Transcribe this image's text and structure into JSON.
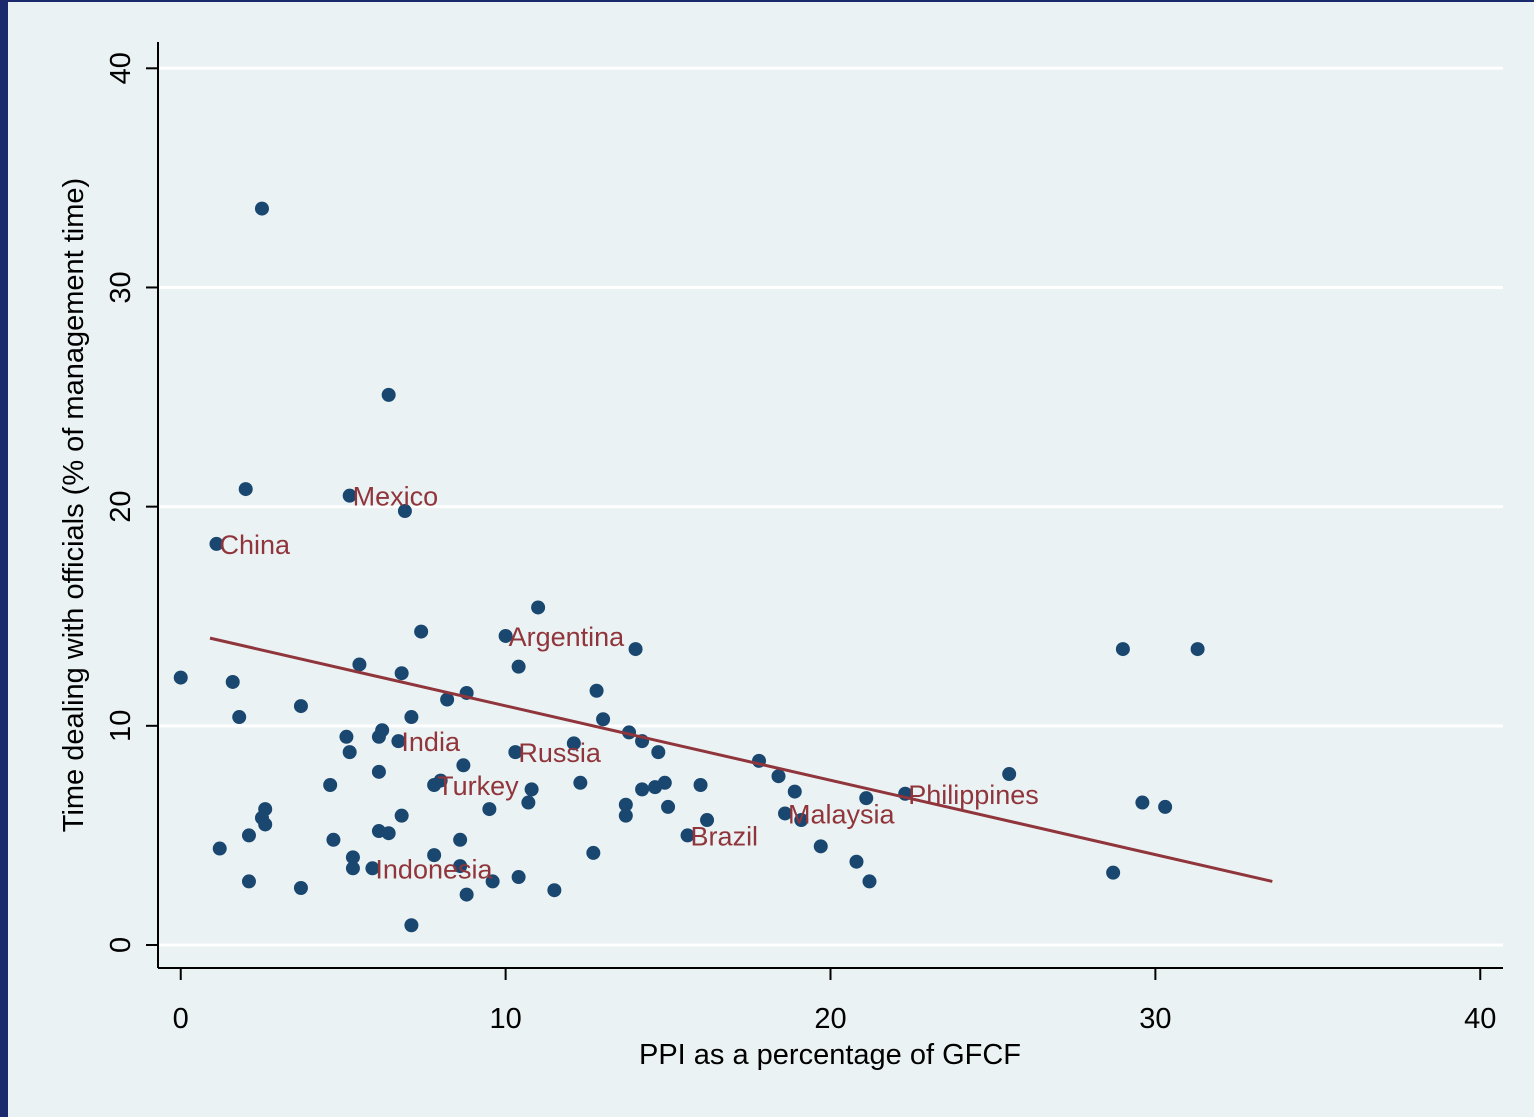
{
  "chart_data": {
    "type": "scatter",
    "xlabel": "PPI as a percentage of GFCF",
    "ylabel": "Time dealing with officials (% of management time)",
    "xlim": [
      -0.7,
      40.7
    ],
    "ylim": [
      -1.05,
      41.2
    ],
    "xticks": [
      0,
      10,
      20,
      30,
      40
    ],
    "yticks": [
      0,
      10,
      20,
      30,
      40
    ],
    "grid": true,
    "series": [
      {
        "type": "scatter",
        "color": "#1a476f",
        "x": [
          0,
          2.5,
          6.4,
          2.0,
          5.2,
          6.9,
          1.1,
          11.0,
          7.4,
          10.0,
          14.0,
          29.0,
          31.3,
          5.5,
          10.4,
          6.8,
          1.6,
          8.8,
          12.8,
          8.2,
          3.7,
          1.8,
          7.1,
          13.0,
          6.2,
          5.1,
          6.1,
          13.8,
          6.7,
          12.1,
          14.2,
          5.2,
          14.7,
          10.3,
          17.8,
          8.7,
          6.1,
          18.4,
          25.5,
          8.0,
          7.8,
          4.6,
          12.3,
          16.0,
          14.9,
          10.8,
          14.2,
          14.6,
          18.9,
          21.1,
          22.3,
          29.6,
          30.3,
          10.7,
          13.7,
          15.0,
          9.5,
          2.6,
          2.5,
          6.8,
          13.7,
          18.6,
          19.1,
          16.2,
          2.6,
          6.1,
          6.4,
          15.6,
          2.1,
          4.7,
          8.6,
          19.7,
          1.2,
          12.7,
          7.8,
          5.3,
          20.8,
          8.6,
          5.3,
          5.9,
          28.7,
          9.6,
          10.4,
          21.2,
          2.1,
          3.7,
          11.5,
          8.8,
          7.1
        ],
        "values": [
          12.2,
          33.6,
          25.1,
          20.8,
          20.5,
          19.8,
          18.3,
          15.4,
          14.3,
          14.1,
          13.5,
          13.5,
          13.5,
          12.8,
          12.7,
          12.4,
          12.0,
          11.5,
          11.6,
          11.2,
          10.9,
          10.4,
          10.4,
          10.3,
          9.8,
          9.5,
          9.5,
          9.7,
          9.3,
          9.2,
          9.3,
          8.8,
          8.8,
          8.8,
          8.4,
          8.2,
          7.9,
          7.7,
          7.8,
          7.5,
          7.3,
          7.3,
          7.4,
          7.3,
          7.4,
          7.1,
          7.1,
          7.2,
          7.0,
          6.7,
          6.9,
          6.5,
          6.3,
          6.5,
          6.4,
          6.3,
          6.2,
          6.2,
          5.8,
          5.9,
          5.9,
          6.0,
          5.7,
          5.7,
          5.5,
          5.2,
          5.1,
          5.0,
          5.0,
          4.8,
          4.8,
          4.5,
          4.4,
          4.2,
          4.1,
          4.0,
          3.8,
          3.6,
          3.5,
          3.5,
          3.3,
          2.9,
          3.1,
          2.9,
          2.9,
          2.6,
          2.5,
          2.3,
          0.9
        ],
        "labels": [
          null,
          null,
          null,
          null,
          "Mexico",
          null,
          "China",
          null,
          null,
          "Argentina",
          null,
          null,
          null,
          null,
          null,
          null,
          null,
          null,
          null,
          null,
          null,
          null,
          null,
          null,
          null,
          null,
          null,
          null,
          "India",
          null,
          null,
          null,
          null,
          "Russia",
          null,
          null,
          null,
          null,
          null,
          null,
          "Turkey",
          null,
          null,
          null,
          null,
          null,
          null,
          null,
          null,
          null,
          "Philippines",
          null,
          null,
          null,
          null,
          null,
          null,
          null,
          null,
          null,
          null,
          "Malaysia",
          null,
          null,
          null,
          null,
          null,
          "Brazil",
          null,
          null,
          null,
          null,
          null,
          null,
          null,
          null,
          null,
          null,
          null,
          "Indonesia",
          null,
          null,
          null,
          null,
          null,
          null,
          null,
          null,
          null
        ]
      },
      {
        "type": "line",
        "color": "#90353b",
        "x": [
          0.9,
          33.6
        ],
        "values": [
          14.0,
          2.9
        ]
      }
    ]
  }
}
